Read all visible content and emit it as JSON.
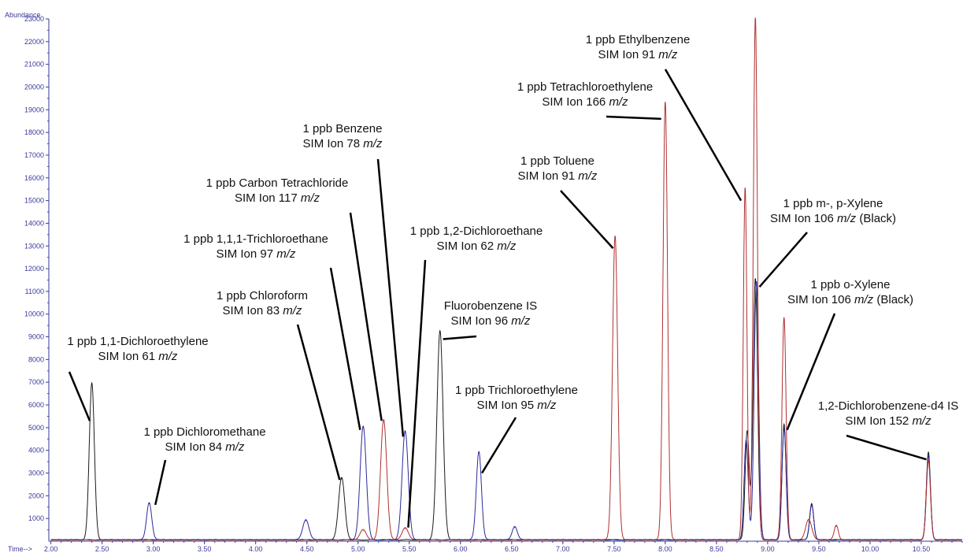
{
  "chart_data": {
    "type": "line",
    "title": "",
    "ylabel": "Abundance",
    "xlabel": "Time-->",
    "xlim": [
      1.98,
      10.9
    ],
    "ylim": [
      0,
      23000
    ],
    "x_ticks": [
      "2.00",
      "2.50",
      "3.00",
      "3.50",
      "4.00",
      "4.50",
      "5.00",
      "5.50",
      "6.00",
      "6.50",
      "7.00",
      "7.50",
      "8.00",
      "8.50",
      "9.00",
      "9.50",
      "10.00",
      "10.50"
    ],
    "y_ticks": [
      "1000",
      "2000",
      "3000",
      "4000",
      "5000",
      "6000",
      "7000",
      "8000",
      "9000",
      "10000",
      "11000",
      "12000",
      "13000",
      "14000",
      "15000",
      "16000",
      "17000",
      "18000",
      "19000",
      "20000",
      "21000",
      "22000",
      "23000"
    ],
    "grid": false,
    "series": [
      {
        "color": "#1a1a1a",
        "peaks": [
          [
            2.4,
            6900,
            0.025
          ],
          [
            4.84,
            2750,
            0.03
          ],
          [
            5.8,
            9200,
            0.03
          ],
          [
            8.8,
            4800,
            0.02
          ],
          [
            8.88,
            11500,
            0.022
          ],
          [
            9.16,
            5100,
            0.02
          ],
          [
            9.43,
            1600,
            0.02
          ],
          [
            10.57,
            3850,
            0.02
          ]
        ]
      },
      {
        "color": "#2a2a9a",
        "peaks": [
          [
            2.96,
            1650,
            0.025
          ],
          [
            4.49,
            900,
            0.03
          ],
          [
            5.05,
            5000,
            0.03
          ],
          [
            5.46,
            4800,
            0.03
          ],
          [
            6.18,
            3900,
            0.025
          ],
          [
            6.53,
            600,
            0.025
          ],
          [
            8.79,
            4400,
            0.02
          ],
          [
            8.89,
            11400,
            0.022
          ],
          [
            9.16,
            4900,
            0.02
          ],
          [
            9.43,
            1550,
            0.02
          ],
          [
            10.57,
            3700,
            0.02
          ]
        ]
      },
      {
        "color": "#b03030",
        "peaks": [
          [
            5.05,
            450,
            0.03
          ],
          [
            5.25,
            5300,
            0.03
          ],
          [
            5.46,
            550,
            0.03
          ],
          [
            7.51,
            13400,
            0.025
          ],
          [
            8.0,
            19300,
            0.022
          ],
          [
            8.78,
            15500,
            0.018
          ],
          [
            8.88,
            23000,
            0.02
          ],
          [
            9.16,
            9800,
            0.02
          ],
          [
            9.4,
            900,
            0.03
          ],
          [
            9.67,
            650,
            0.02
          ],
          [
            10.57,
            3500,
            0.02
          ]
        ]
      }
    ],
    "annotations": [
      {
        "lines": [
          "1 ppb 1,1-Dichloroethylene",
          "SIM Ion 61 m/z"
        ],
        "arrow_to": [
          2.38,
          5300
        ]
      },
      {
        "lines": [
          "1 ppb Dichloromethane",
          "SIM Ion 84 m/z"
        ],
        "arrow_to": [
          3.02,
          1600
        ]
      },
      {
        "lines": [
          "1 ppb Chloroform",
          "SIM Ion 83 m/z"
        ],
        "arrow_to": [
          4.82,
          2700
        ]
      },
      {
        "lines": [
          "1 ppb 1,1,1-Trichloroethane",
          "SIM Ion 97 m/z"
        ],
        "arrow_to": [
          5.02,
          4900
        ]
      },
      {
        "lines": [
          "1 ppb Carbon Tetrachloride",
          "SIM Ion 117 m/z"
        ],
        "arrow_to": [
          5.23,
          5300
        ]
      },
      {
        "lines": [
          "1 ppb Benzene",
          "SIM Ion 78 m/z"
        ],
        "arrow_to": [
          5.44,
          4600
        ]
      },
      {
        "lines": [
          "1 ppb 1,2-Dichloroethane",
          "SIM Ion 62 m/z"
        ],
        "arrow_to": [
          5.49,
          600
        ]
      },
      {
        "lines": [
          "Fluorobenzene IS",
          "SIM Ion 96 m/z"
        ],
        "arrow_to": [
          5.83,
          8900
        ]
      },
      {
        "lines": [
          "1 ppb Trichloroethylene",
          "SIM Ion 95 m/z"
        ],
        "arrow_to": [
          6.21,
          3000
        ]
      },
      {
        "lines": [
          "1 ppb Toluene",
          "SIM Ion 91 m/z"
        ],
        "arrow_to": [
          7.49,
          12900
        ]
      },
      {
        "lines": [
          "1 ppb Tetrachloroethylene",
          "SIM Ion 166 m/z"
        ],
        "arrow_to": [
          7.96,
          18600
        ]
      },
      {
        "lines": [
          "1 ppb Ethylbenzene",
          "SIM Ion 91 m/z"
        ],
        "arrow_to": [
          8.74,
          15000
        ]
      },
      {
        "lines": [
          "1 ppb m-, p-Xylene",
          "SIM Ion 106 m/z (Black)"
        ],
        "arrow_to": [
          8.92,
          11200
        ]
      },
      {
        "lines": [
          "1 ppb o-Xylene",
          "SIM Ion 106 m/z (Black)"
        ],
        "arrow_to": [
          9.19,
          4900
        ]
      },
      {
        "lines": [
          "1,2-Dichlorobenzene-d4 IS",
          "SIM Ion 152 m/z"
        ],
        "arrow_to": [
          10.55,
          3600
        ]
      }
    ]
  }
}
